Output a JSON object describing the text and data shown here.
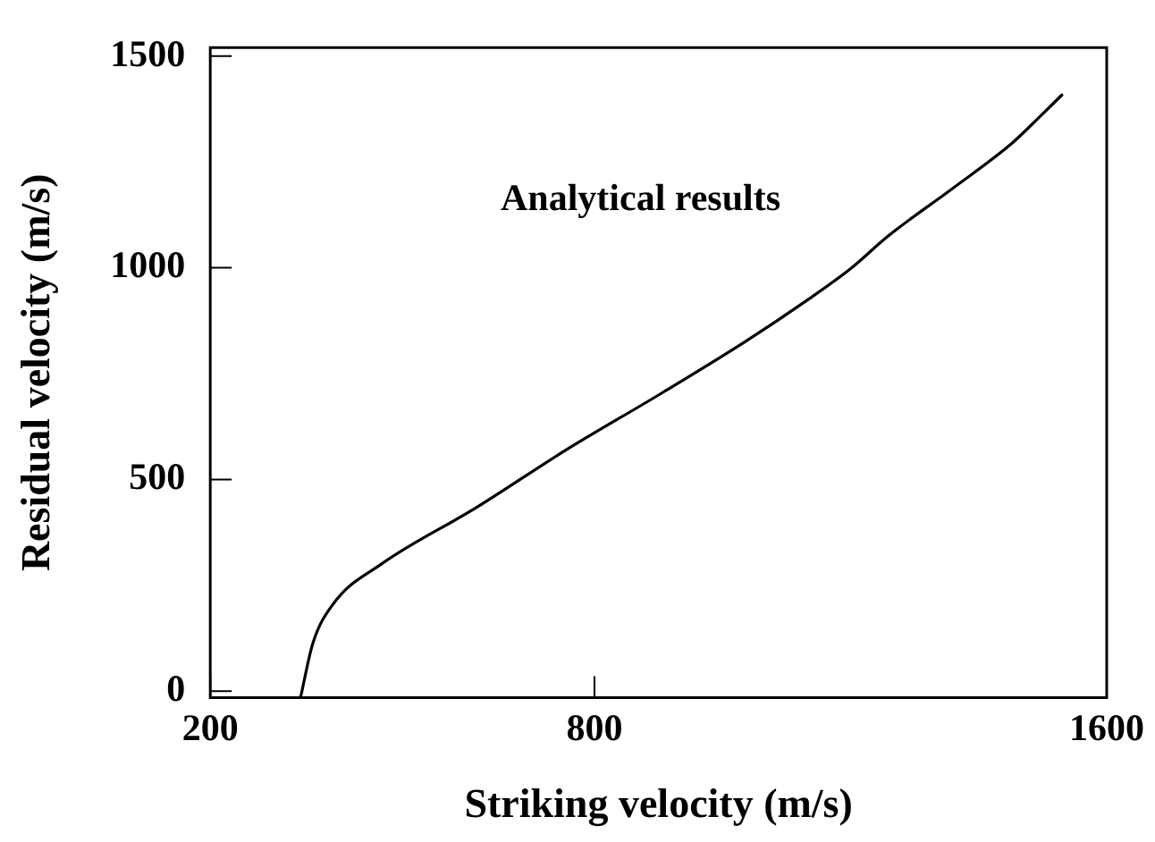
{
  "chart_data": {
    "type": "line",
    "xlabel": "Striking velocity (m/s)",
    "ylabel": "Residual velocity (m/s)",
    "annotations": [
      "Analytical results"
    ],
    "x": [
      341,
      360,
      392,
      467,
      616,
      755,
      904,
      1034,
      1127,
      1201,
      1257,
      1359,
      1452,
      1499,
      1530
    ],
    "series": [
      {
        "color": "#000000",
        "values": [
          -15,
          112,
          206,
          300,
          434,
          569,
          703,
          824,
          918,
          999,
          1073,
          1187,
          1294,
          1362,
          1408
        ]
      }
    ],
    "xlim": [
      200,
      1600
    ],
    "xticks": [
      200,
      800,
      1600
    ],
    "ylim": [
      -15,
      1520
    ],
    "yticks": [
      0,
      500,
      1000,
      1500
    ],
    "grid": false,
    "legend": false,
    "marker": "none",
    "line_style": "solid"
  }
}
